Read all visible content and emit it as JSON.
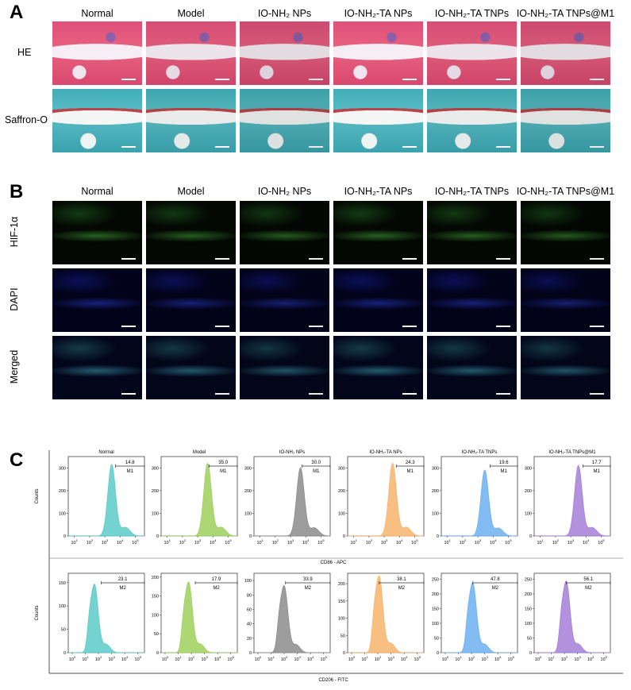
{
  "panel_letters": {
    "a": "A",
    "b": "B",
    "c": "C"
  },
  "groups": [
    "Normal",
    "Model",
    "IO-NH₂ NPs",
    "IO-NH₂-TA NPs",
    "IO-NH₂-TA TNPs",
    "IO-NH₂-TA TNPs@M1"
  ],
  "panel_a": {
    "rows": [
      {
        "label": "HE",
        "stain": "he"
      },
      {
        "label": "Saffron-O",
        "stain": "so"
      }
    ]
  },
  "panel_b": {
    "rows": [
      {
        "label": "HIF-1α",
        "stain": "hif"
      },
      {
        "label": "DAPI",
        "stain": "dapi"
      },
      {
        "label": "Merged",
        "stain": "mer"
      }
    ]
  },
  "chart_data": [
    {
      "type": "histogram",
      "xlabel": "CD86 - APC",
      "ylabel": "Counts",
      "x_scale": "log",
      "gate": "M1",
      "xticks": [
        "10^1",
        "10^2",
        "10^3",
        "10^4",
        "10^5"
      ],
      "xlim_log10": [
        0.6,
        5.6
      ],
      "plots": [
        {
          "title": "Normal",
          "percent": "14.8",
          "color": "#5ccbc9",
          "yticks": [
            0,
            100,
            200,
            300
          ],
          "ymax": 350,
          "peak_log10": 3.45,
          "peak": 315,
          "gate_start_log10": 3.7
        },
        {
          "title": "Model",
          "percent": "35.0",
          "color": "#9fd05c",
          "yticks": [
            0,
            100,
            200,
            300
          ],
          "ymax": 350,
          "peak_log10": 3.65,
          "peak": 320,
          "gate_start_log10": 3.75
        },
        {
          "title": "IO-NH₂ NPs",
          "percent": "30.0",
          "color": "#8c8c8c",
          "yticks": [
            0,
            100,
            200,
            300
          ],
          "ymax": 350,
          "peak_log10": 3.65,
          "peak": 300,
          "gate_start_log10": 3.75
        },
        {
          "title": "IO-NH₂-TA NPs",
          "percent": "24.3",
          "color": "#f7b46c",
          "yticks": [
            0,
            100,
            200,
            300
          ],
          "ymax": 350,
          "peak_log10": 3.55,
          "peak": 320,
          "gate_start_log10": 3.8
        },
        {
          "title": "IO-NH₂-TA TNPs",
          "percent": "19.6",
          "color": "#6cb0f0",
          "yticks": [
            0,
            100,
            200,
            300
          ],
          "ymax": 350,
          "peak_log10": 3.45,
          "peak": 290,
          "gate_start_log10": 3.8
        },
        {
          "title": "IO-NH₂-TA TNPs@M1",
          "percent": "17.7",
          "color": "#a57fd8",
          "yticks": [
            0,
            100,
            200,
            300
          ],
          "ymax": 350,
          "peak_log10": 3.5,
          "peak": 310,
          "gate_start_log10": 3.8
        }
      ]
    },
    {
      "type": "histogram",
      "xlabel": "CD206 - FITC",
      "ylabel": "Counts",
      "x_scale": "log",
      "gate": "M2",
      "xticks": [
        "10^0",
        "10^1",
        "10^2",
        "10^3",
        "10^4",
        "10^5"
      ],
      "xlim_log10": [
        -0.3,
        5.5
      ],
      "plots": [
        {
          "percent": "23.1",
          "color": "#5ccbc9",
          "yticks": [
            0,
            50,
            100,
            150
          ],
          "ymax": 170,
          "peak_log10": 1.7,
          "peak": 145,
          "gate_start_log10": 2.2
        },
        {
          "percent": "17.9",
          "color": "#9fd05c",
          "yticks": [
            0,
            50,
            100,
            150,
            200
          ],
          "ymax": 210,
          "peak_log10": 1.8,
          "peak": 185,
          "gate_start_log10": 2.3
        },
        {
          "percent": "33.9",
          "color": "#8c8c8c",
          "yticks": [
            0,
            20,
            40,
            60,
            80,
            100
          ],
          "ymax": 110,
          "peak_log10": 2.0,
          "peak": 92,
          "gate_start_log10": 2.1
        },
        {
          "percent": "38.1",
          "color": "#f7b46c",
          "yticks": [
            0,
            50,
            100,
            150,
            200
          ],
          "ymax": 230,
          "peak_log10": 2.1,
          "peak": 220,
          "gate_start_log10": 2.1
        },
        {
          "percent": "47.8",
          "color": "#6cb0f0",
          "yticks": [
            0,
            50,
            100,
            150,
            200,
            250
          ],
          "ymax": 270,
          "peak_log10": 2.1,
          "peak": 235,
          "gate_start_log10": 2.1
        },
        {
          "percent": "56.1",
          "color": "#a57fd8",
          "yticks": [
            0,
            50,
            100,
            150,
            200,
            250
          ],
          "ymax": 270,
          "peak_log10": 2.15,
          "peak": 240,
          "gate_start_log10": 2.15
        }
      ]
    }
  ]
}
